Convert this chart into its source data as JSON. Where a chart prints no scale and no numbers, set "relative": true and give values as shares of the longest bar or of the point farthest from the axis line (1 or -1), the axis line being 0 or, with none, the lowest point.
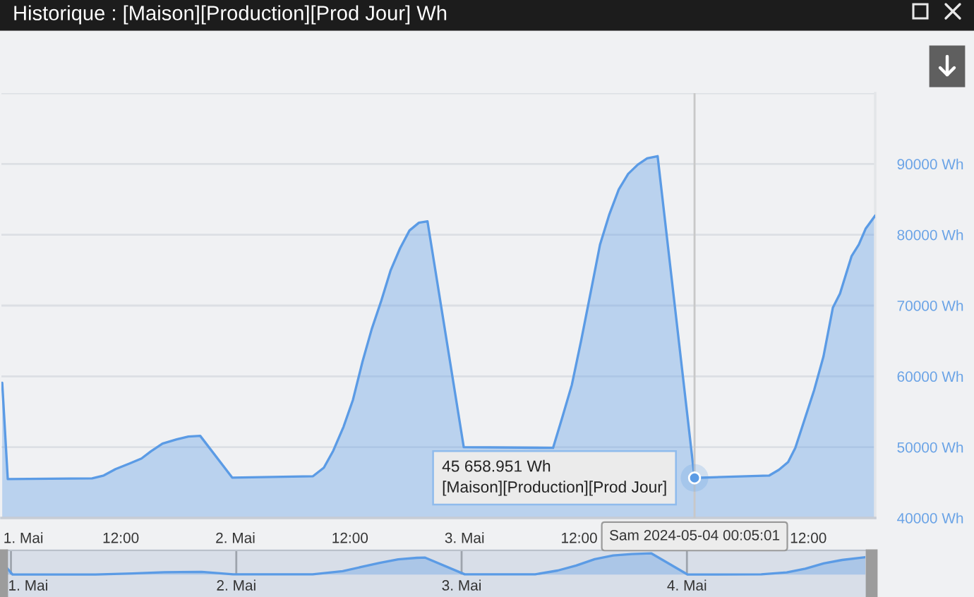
{
  "chart_data": [
    {
      "type": "area",
      "title": "Historique : [Maison][Production][Prod Jour] Wh",
      "x": [
        "2024-04-30T23:35",
        "2024-05-01T00:10",
        "2024-05-01T09:00",
        "2024-05-01T10:13",
        "2024-05-01T11:27",
        "2024-05-01T12:56",
        "2024-05-01T14:10",
        "2024-05-01T15:09",
        "2024-05-01T16:22",
        "2024-05-01T17:51",
        "2024-05-01T19:05",
        "2024-05-01T20:19",
        "2024-05-01T23:40",
        "2024-05-02T08:08",
        "2024-05-02T09:16",
        "2024-05-02T10:15",
        "2024-05-02T11:20",
        "2024-05-02T12:19",
        "2024-05-02T13:19",
        "2024-05-02T14:17",
        "2024-05-02T15:17",
        "2024-05-02T16:16",
        "2024-05-02T17:15",
        "2024-05-02T18:14",
        "2024-05-02T19:13",
        "2024-05-02T20:07",
        "2024-05-02T23:55",
        "2024-05-03T09:16",
        "2024-05-03T10:14",
        "2024-05-03T11:14",
        "2024-05-03T12:13",
        "2024-05-03T13:11",
        "2024-05-03T14:11",
        "2024-05-03T15:10",
        "2024-05-03T16:09",
        "2024-05-03T17:08",
        "2024-05-03T18:08",
        "2024-05-03T19:07",
        "2024-05-03T20:13",
        "2024-05-04T00:05",
        "2024-05-04T07:55",
        "2024-05-04T08:55",
        "2024-05-04T09:53",
        "2024-05-04T10:38",
        "2024-05-04T11:22",
        "2024-05-04T12:37",
        "2024-05-04T13:35",
        "2024-05-04T14:34",
        "2024-05-04T15:19",
        "2024-05-04T16:32",
        "2024-05-04T17:17",
        "2024-05-04T18:01",
        "2024-05-04T19:00"
      ],
      "values": [
        59100,
        45500,
        45600,
        46000,
        46900,
        47700,
        48400,
        49400,
        50500,
        51100,
        51500,
        51600,
        45700,
        45900,
        47100,
        49500,
        52900,
        56700,
        62100,
        66700,
        70700,
        75000,
        78100,
        80600,
        81700,
        81900,
        50000,
        49900,
        54200,
        58800,
        65100,
        71700,
        78600,
        82900,
        86400,
        88600,
        89900,
        90800,
        91100,
        45658.951,
        46000,
        46800,
        47900,
        49900,
        52900,
        58100,
        62800,
        69700,
        71700,
        77000,
        78600,
        80900,
        82700
      ],
      "color": "#5b9be5",
      "xlim": [
        "2024-04-30T23:30",
        "2024-05-04T19:00"
      ],
      "xticks": [
        {
          "value": "2024-05-01",
          "label": "1. Mai"
        },
        {
          "value": "2024-05-01T12:00",
          "label": "12:00"
        },
        {
          "value": "2024-05-02",
          "label": "2. Mai"
        },
        {
          "value": "2024-05-02T12:00",
          "label": "12:00"
        },
        {
          "value": "2024-05-03",
          "label": "3. Mai"
        },
        {
          "value": "2024-05-03T12:00",
          "label": "12:00"
        },
        {
          "value": "2024-05-04",
          "label": null
        },
        {
          "value": "2024-05-04T12:00",
          "label": "12:00"
        }
      ],
      "ylim": [
        40000,
        100000
      ],
      "yticks": [
        {
          "value": 40000,
          "label": "40000 Wh"
        },
        {
          "value": 50000,
          "label": "50000 Wh"
        },
        {
          "value": 60000,
          "label": "60000 Wh"
        },
        {
          "value": 70000,
          "label": "70000 Wh"
        },
        {
          "value": 80000,
          "label": "80000 Wh"
        },
        {
          "value": 90000,
          "label": "90000 Wh"
        },
        {
          "value": 100000,
          "label": null
        }
      ],
      "grid": "y",
      "ref_lines": [
        {
          "axis": "x",
          "value": "2024-05-04T00:05",
          "label": "Sam 2024-05-04 00:05:01",
          "color": "#c8c8c8"
        }
      ],
      "annotations": [
        {
          "text": "45 658.951 Wh\n[Maison][Production][Prod Jour]",
          "x": "2024-05-04T00:05",
          "y": 45658.951
        }
      ]
    },
    {
      "type": "area",
      "relative": true,
      "x": [
        "2024-04-30T23:35",
        "2024-05-01T00:10",
        "2024-05-01T09:00",
        "2024-05-01T12:56",
        "2024-05-01T16:22",
        "2024-05-01T20:19",
        "2024-05-01T23:40",
        "2024-05-02T08:08",
        "2024-05-02T11:20",
        "2024-05-02T13:19",
        "2024-05-02T15:17",
        "2024-05-02T17:15",
        "2024-05-02T19:13",
        "2024-05-02T20:07",
        "2024-05-03T00:20",
        "2024-05-03T07:50",
        "2024-05-03T10:14",
        "2024-05-03T12:13",
        "2024-05-03T14:11",
        "2024-05-03T16:09",
        "2024-05-03T18:08",
        "2024-05-03T20:13",
        "2024-05-04T00:05",
        "2024-05-04T07:55",
        "2024-05-04T10:38",
        "2024-05-04T12:37",
        "2024-05-04T14:34",
        "2024-05-04T16:32",
        "2024-05-04T19:00"
      ],
      "values": [
        0.3,
        0,
        0,
        0.05,
        0.11,
        0.13,
        0.01,
        0.01,
        0.16,
        0.36,
        0.55,
        0.72,
        0.79,
        0.8,
        0.01,
        0.01,
        0.19,
        0.43,
        0.73,
        0.9,
        0.97,
        1,
        0,
        0.01,
        0.1,
        0.28,
        0.53,
        0.69,
        0.82
      ],
      "color": "#5b9be5",
      "xlim": [
        "2024-04-30T23:35",
        "2024-05-04T19:00"
      ],
      "xticks": [
        {
          "value": "2024-05-01",
          "label": "1. Mai"
        },
        {
          "value": "2024-05-02",
          "label": "2. Mai"
        },
        {
          "value": "2024-05-03",
          "label": "3. Mai"
        },
        {
          "value": "2024-05-04",
          "label": "4. Mai"
        }
      ],
      "grid": "x"
    }
  ]
}
